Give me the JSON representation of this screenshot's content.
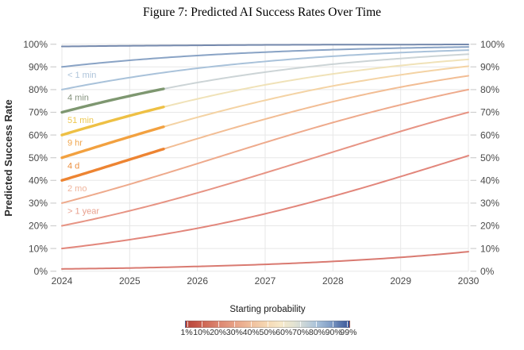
{
  "title": "Figure 7: Predicted AI Success Rates Over Time",
  "y_axis": {
    "label": "Predicted Success Rate",
    "ticks": [
      "0%",
      "10%",
      "20%",
      "30%",
      "40%",
      "50%",
      "60%",
      "70%",
      "80%",
      "90%",
      "100%"
    ]
  },
  "x_axis": {
    "ticks": [
      "2024",
      "2025",
      "2026",
      "2027",
      "2028",
      "2029",
      "2030"
    ]
  },
  "legend": {
    "title": "Starting probability",
    "tick_labels": [
      "1%",
      "10%",
      "20%",
      "30%",
      "40%",
      "50%",
      "60%",
      "70%",
      "80%",
      "90%",
      "99%"
    ],
    "tick_values": [
      1,
      10,
      20,
      30,
      40,
      50,
      60,
      70,
      80,
      90,
      99
    ],
    "gradient_stops": [
      [
        0,
        "#b5463c"
      ],
      [
        6,
        "#c45345"
      ],
      [
        12,
        "#d06a57"
      ],
      [
        20,
        "#dc8670"
      ],
      [
        30,
        "#e8a287"
      ],
      [
        40,
        "#f0bf9c"
      ],
      [
        50,
        "#f6d9b4"
      ],
      [
        58,
        "#f7e9c9"
      ],
      [
        66,
        "#e3e3d2"
      ],
      [
        72,
        "#cdd7d8"
      ],
      [
        80,
        "#a9c2da"
      ],
      [
        88,
        "#84a1c8"
      ],
      [
        94,
        "#5b78ae"
      ],
      [
        100,
        "#3a569a"
      ]
    ]
  },
  "chart_data": {
    "type": "line",
    "title": "Figure 7: Predicted AI Success Rates Over Time",
    "xlabel": "",
    "ylabel": "Predicted Success Rate",
    "xlim": [
      2024,
      2030
    ],
    "ylim": [
      0,
      100
    ],
    "grid": true,
    "legend_position": "bottom",
    "x": [
      2024,
      2025,
      2026,
      2027,
      2028,
      2029,
      2030
    ],
    "observed_segment_range": [
      2024,
      2025.5
    ],
    "series": [
      {
        "name": "99%",
        "start_probability": 99,
        "label": null,
        "color": "#7589ad",
        "values": [
          99.0,
          99.3,
          99.5,
          99.7,
          99.8,
          99.8,
          99.9
        ]
      },
      {
        "name": "90%",
        "start_probability": 90,
        "label": null,
        "color": "#89a3c5",
        "values": [
          90.0,
          92.9,
          95.0,
          96.5,
          97.6,
          98.3,
          98.8
        ]
      },
      {
        "name": "80%",
        "start_probability": 80,
        "label": "< 1 min",
        "label_color": "#aec4da",
        "color": "#a9c2da",
        "values": [
          80.0,
          85.3,
          89.4,
          92.4,
          94.7,
          96.3,
          97.4
        ]
      },
      {
        "name": "70%",
        "start_probability": 70,
        "label": "4 min",
        "label_color": "#85927e",
        "color": "#ccd4d6",
        "observed_until": 2025.5,
        "observed_color": "#7e9770",
        "values": [
          70.0,
          77.2,
          83.1,
          87.7,
          91.2,
          93.7,
          95.6
        ]
      },
      {
        "name": "60%",
        "start_probability": 60,
        "label": "51 min",
        "label_color": "#edc84f",
        "color": "#f0e2b8",
        "observed_until": 2025.5,
        "observed_color": "#eec044",
        "values": [
          60.0,
          68.5,
          75.9,
          82.1,
          86.9,
          90.6,
          93.3
        ]
      },
      {
        "name": "50%",
        "start_probability": 50,
        "label": "9 hr",
        "label_color": "#f0a54c",
        "color": "#f4d3a4",
        "observed_until": 2025.5,
        "observed_color": "#f2a140",
        "values": [
          50.0,
          59.2,
          67.8,
          75.3,
          81.6,
          86.5,
          90.3
        ]
      },
      {
        "name": "40%",
        "start_probability": 40,
        "label": "4 d",
        "label_color": "#ec8f3f",
        "color": "#f2bd94",
        "observed_until": 2025.5,
        "observed_color": "#ed8432",
        "values": [
          40.0,
          49.2,
          58.4,
          67.0,
          74.7,
          81.1,
          86.1
        ]
      },
      {
        "name": "30%",
        "start_probability": 30,
        "label": "2 mo",
        "label_color": "#efb49c",
        "color": "#eeaa8c",
        "values": [
          30.0,
          38.3,
          47.4,
          56.7,
          65.5,
          73.3,
          80.0
        ]
      },
      {
        "name": "20%",
        "start_probability": 20,
        "label": "> 1 year",
        "label_color": "#e8a08e",
        "color": "#e79484",
        "values": [
          20.0,
          26.6,
          34.5,
          43.3,
          52.5,
          61.6,
          70.0
        ]
      },
      {
        "name": "10%",
        "start_probability": 10,
        "label": null,
        "color": "#e2867b",
        "values": [
          10.0,
          13.9,
          18.9,
          25.3,
          33.0,
          41.7,
          50.9
        ]
      },
      {
        "name": "1%",
        "start_probability": 1,
        "label": null,
        "color": "#d97a71",
        "values": [
          1.0,
          1.4,
          2.1,
          3.0,
          4.3,
          6.1,
          8.6
        ]
      }
    ]
  }
}
